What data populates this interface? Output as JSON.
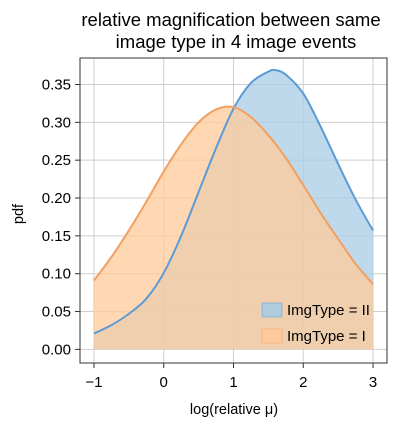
{
  "chart_data": {
    "type": "area",
    "title_lines": [
      "relative magnification between same",
      "image type in 4 image events"
    ],
    "xlabel": "log(relative μ)",
    "ylabel": "pdf",
    "xlim": [
      -1.2,
      3.2
    ],
    "ylim": [
      -0.018,
      0.385
    ],
    "x_ticks": [
      -1,
      0,
      1,
      2,
      3
    ],
    "x_tick_labels": [
      "−1",
      "0",
      "1",
      "2",
      "3"
    ],
    "y_ticks": [
      0.0,
      0.05,
      0.1,
      0.15,
      0.2,
      0.25,
      0.3,
      0.35
    ],
    "y_tick_labels": [
      "0.00",
      "0.05",
      "0.10",
      "0.15",
      "0.20",
      "0.25",
      "0.30",
      "0.35"
    ],
    "grid": true,
    "legend_position": "bottom-right",
    "series": [
      {
        "name": "ImgType = II",
        "color": "#5b9bd5",
        "fill": "#a9cce6",
        "x": [
          -1.0,
          -0.75,
          -0.5,
          -0.25,
          0.0,
          0.25,
          0.5,
          0.75,
          1.0,
          1.25,
          1.5,
          1.6,
          1.75,
          2.0,
          2.25,
          2.5,
          2.75,
          3.0
        ],
        "y": [
          0.021,
          0.032,
          0.047,
          0.067,
          0.101,
          0.15,
          0.208,
          0.266,
          0.318,
          0.352,
          0.367,
          0.369,
          0.363,
          0.338,
          0.294,
          0.245,
          0.198,
          0.157
        ]
      },
      {
        "name": "ImgType = I",
        "color": "#f0a060",
        "fill": "#ffcb9a",
        "x": [
          -1.0,
          -0.75,
          -0.5,
          -0.25,
          0.0,
          0.25,
          0.5,
          0.75,
          1.0,
          1.25,
          1.5,
          1.75,
          2.0,
          2.25,
          2.5,
          2.75,
          3.0
        ],
        "y": [
          0.091,
          0.122,
          0.157,
          0.195,
          0.235,
          0.271,
          0.3,
          0.317,
          0.32,
          0.307,
          0.283,
          0.253,
          0.217,
          0.18,
          0.146,
          0.113,
          0.086
        ]
      }
    ]
  }
}
